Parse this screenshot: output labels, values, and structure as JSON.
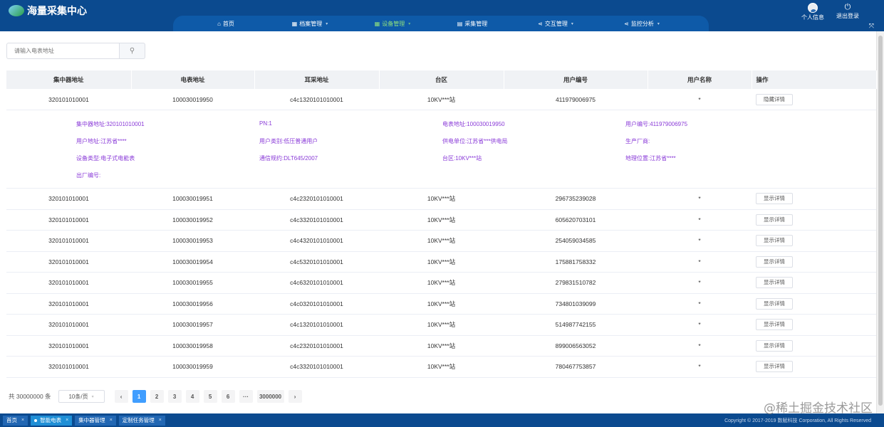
{
  "app": {
    "title": "海量采集中心"
  },
  "nav": {
    "items": [
      {
        "label": "首页",
        "icon": "home-icon",
        "glyph": "⌂",
        "caret": false,
        "active": false,
        "width": 120
      },
      {
        "label": "档案管理",
        "icon": "archive-icon",
        "glyph": "▦",
        "caret": true,
        "active": false,
        "width": 116
      },
      {
        "label": "设备管理",
        "icon": "device-icon",
        "glyph": "▦",
        "caret": true,
        "active": true,
        "width": 116
      },
      {
        "label": "采集管理",
        "icon": "collect-icon",
        "glyph": "▤",
        "caret": false,
        "active": false,
        "width": 108
      },
      {
        "label": "交互管理",
        "icon": "share-icon",
        "glyph": "⋖",
        "caret": true,
        "active": false,
        "width": 126
      },
      {
        "label": "监控分析",
        "icon": "monitor-icon",
        "glyph": "⋖",
        "caret": true,
        "active": false,
        "width": 116
      }
    ]
  },
  "user": {
    "profile_label": "个人信息",
    "logout_label": "退出登录"
  },
  "search": {
    "placeholder": "请输入电表地址"
  },
  "table": {
    "columns": [
      "集中器地址",
      "电表地址",
      "耳采地址",
      "台区",
      "用户编号",
      "用户名称",
      "操作"
    ],
    "expanded_row_label": "隐藏详情",
    "row_label": "显示详情",
    "rows": [
      {
        "concentrator": "320101010001",
        "meter": "100030019950",
        "collector": "c4c1320101010001",
        "area": "10KV***站",
        "user_no": "411979006975",
        "user_name": "*",
        "expanded": true
      },
      {
        "concentrator": "320101010001",
        "meter": "100030019951",
        "collector": "c4c2320101010001",
        "area": "10KV***站",
        "user_no": "296735239028",
        "user_name": "*"
      },
      {
        "concentrator": "320101010001",
        "meter": "100030019952",
        "collector": "c4c3320101010001",
        "area": "10KV***站",
        "user_no": "605620703101",
        "user_name": "*"
      },
      {
        "concentrator": "320101010001",
        "meter": "100030019953",
        "collector": "c4c4320101010001",
        "area": "10KV***站",
        "user_no": "254059034585",
        "user_name": "*"
      },
      {
        "concentrator": "320101010001",
        "meter": "100030019954",
        "collector": "c4c5320101010001",
        "area": "10KV***站",
        "user_no": "175881758332",
        "user_name": "*"
      },
      {
        "concentrator": "320101010001",
        "meter": "100030019955",
        "collector": "c4c6320101010001",
        "area": "10KV***站",
        "user_no": "279831510782",
        "user_name": "*"
      },
      {
        "concentrator": "320101010001",
        "meter": "100030019956",
        "collector": "c4c0320101010001",
        "area": "10KV***站",
        "user_no": "734801039099",
        "user_name": "*"
      },
      {
        "concentrator": "320101010001",
        "meter": "100030019957",
        "collector": "c4c1320101010001",
        "area": "10KV***站",
        "user_no": "514987742155",
        "user_name": "*"
      },
      {
        "concentrator": "320101010001",
        "meter": "100030019958",
        "collector": "c4c2320101010001",
        "area": "10KV***站",
        "user_no": "899006563052",
        "user_name": "*"
      },
      {
        "concentrator": "320101010001",
        "meter": "100030019959",
        "collector": "c4c3320101010001",
        "area": "10KV***站",
        "user_no": "780467753857",
        "user_name": "*"
      }
    ],
    "detail": [
      "集中器地址:320101010001",
      "PN:1",
      "电表地址:100030019950",
      "用户编号:411979006975",
      "用户地址:江苏省****",
      "用户类别:低压普通用户",
      "供电单位:江苏省***供电局",
      "生产厂商:",
      "设备类型:电子式电能表",
      "通信规约:DLT645/2007",
      "台区:10KV***站",
      "地理位置:江苏省****",
      "出厂编号:"
    ]
  },
  "pager": {
    "total": "共 30000000 条",
    "page_size": "10条/页",
    "prev": "‹",
    "next": "›",
    "pages": [
      "1",
      "2",
      "3",
      "4",
      "5",
      "6",
      "···",
      "3000000"
    ],
    "current": "1"
  },
  "footer": {
    "tabs": [
      {
        "label": "首页",
        "active": false
      },
      {
        "label": "智能电表",
        "active": true
      },
      {
        "label": "集中器管理",
        "active": false
      },
      {
        "label": "定制任务管理",
        "active": false
      }
    ],
    "copyright": "Copyright © 2017-2019 数赋科技 Corporation, All Rights Reserved"
  },
  "watermark": "@稀土掘金技术社区",
  "colors": {
    "header": "#0b4a8f",
    "nav": "#0e5aa8",
    "active_nav": "#8fe07e",
    "detail_text": "#8a3bd8",
    "page_active": "#409eff"
  }
}
